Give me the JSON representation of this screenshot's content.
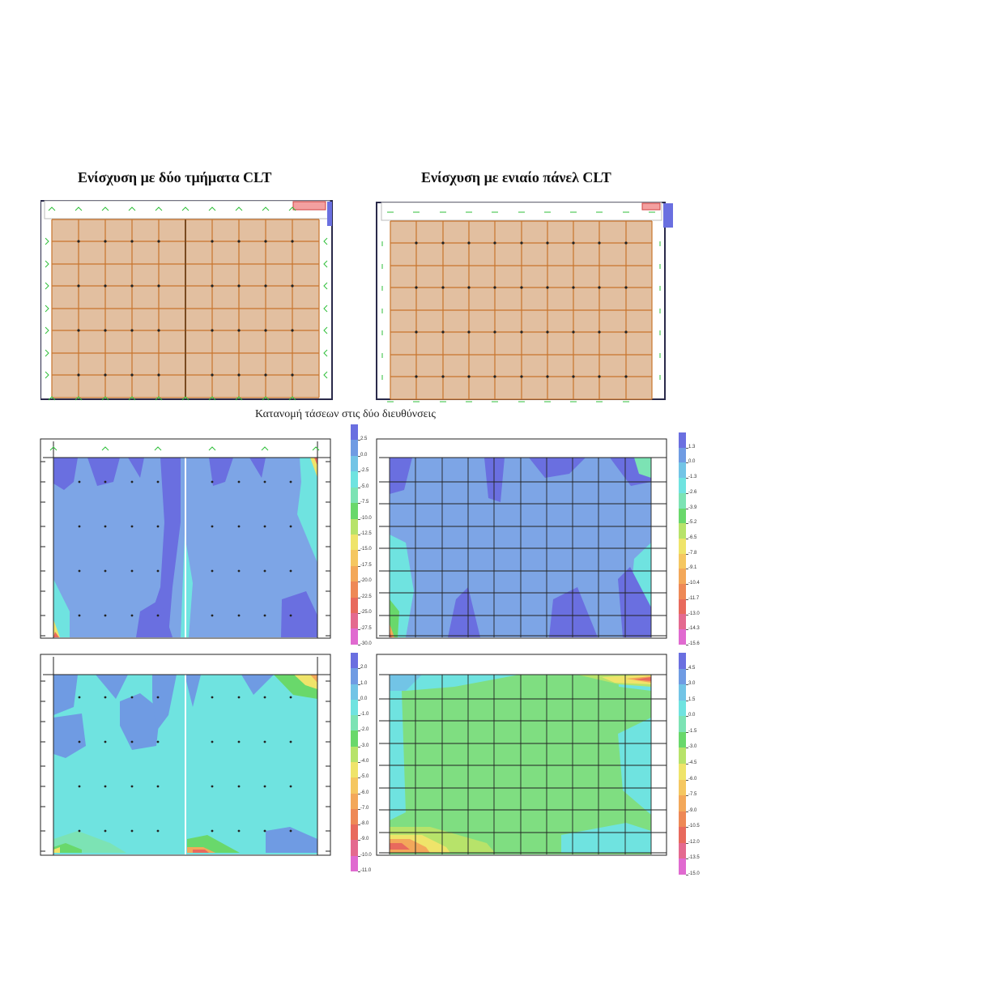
{
  "titles": {
    "left": "Ενίσχυση με δύο τμήματα CLT",
    "right": "Ενίσχυση με ενιαίο πάνελ CLT"
  },
  "caption": "Κατανομή τάσεων  στις δύο διευθύνσεις",
  "colors": {
    "panel_fill": "#e2bfa0",
    "grid_line": "#c8742c",
    "support_green": "#2fbf3a",
    "frame": "#2a2a4a"
  },
  "legends": {
    "mid_left": [
      "2.5",
      "0.0",
      "-2.5",
      "-5.0",
      "-7.5",
      "-10.0",
      "-12.5",
      "-15.0",
      "-17.5",
      "-20.0",
      "-22.5",
      "-25.0",
      "-27.5",
      "-30.0"
    ],
    "mid_right": [
      "1.3",
      "0.0",
      "-1.3",
      "-2.6",
      "-3.9",
      "-5.2",
      "-6.5",
      "-7.8",
      "-9.1",
      "-10.4",
      "-11.7",
      "-13.0",
      "-14.3",
      "-15.6"
    ],
    "bot_left": [
      "2.0",
      "1.0",
      "0.0",
      "-1.0",
      "-2.0",
      "-3.0",
      "-4.0",
      "-5.0",
      "-6.0",
      "-7.0",
      "-8.0",
      "-9.0",
      "-10.0",
      "-11.0"
    ],
    "bot_right": [
      "4.5",
      "3.0",
      "1.5",
      "0.0",
      "-1.5",
      "-3.0",
      "-4.5",
      "-6.0",
      "-7.5",
      "-9.0",
      "-10.5",
      "-12.0",
      "-13.5",
      "-15.0"
    ]
  },
  "legend_colors": [
    "#6a6fe0",
    "#6f9be3",
    "#72c4e6",
    "#6fe3e0",
    "#7ce3b4",
    "#69d86b",
    "#b7e36a",
    "#efe46a",
    "#f5c761",
    "#f3a85a",
    "#ee8956",
    "#e86a5d",
    "#e46a8f",
    "#e06ad0"
  ]
}
